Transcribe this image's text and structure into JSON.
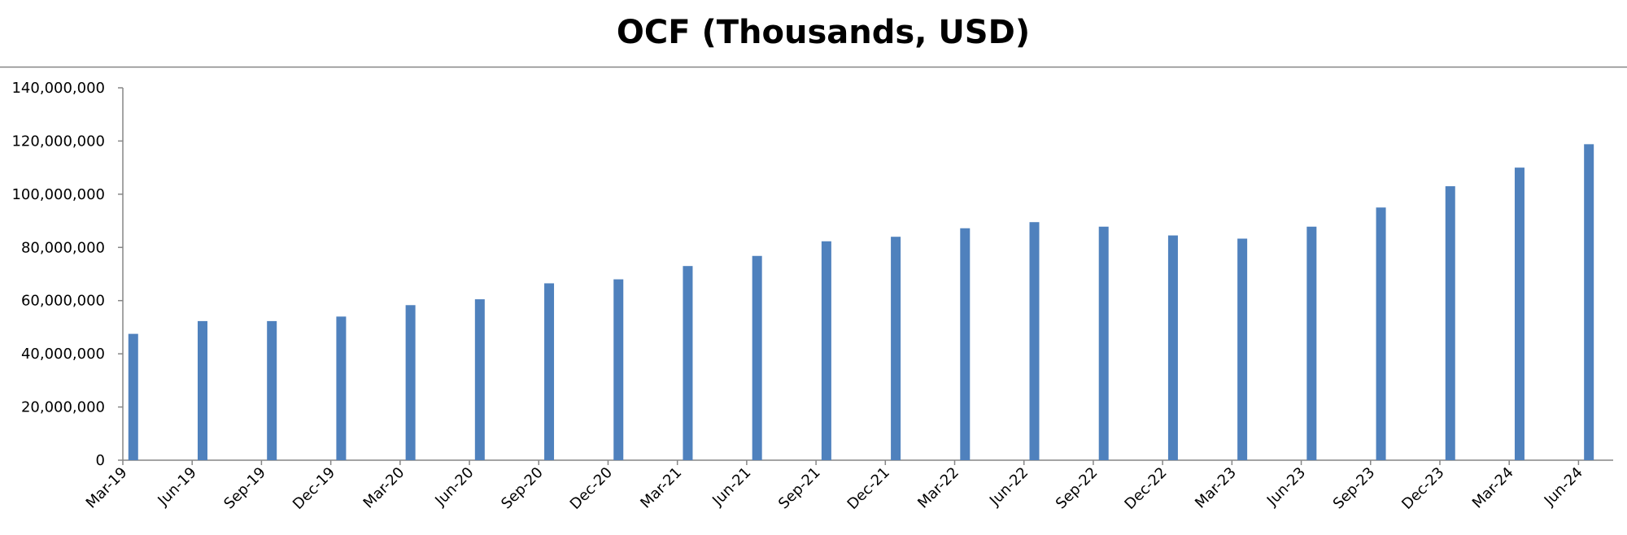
{
  "chart_data": {
    "type": "bar",
    "title": "OCF (Thousands, USD)",
    "xlabel": "",
    "ylabel": "",
    "categories": [
      "Mar-19",
      "Jun-19",
      "Sep-19",
      "Dec-19",
      "Mar-20",
      "Jun-20",
      "Sep-20",
      "Dec-20",
      "Mar-21",
      "Jun-21",
      "Sep-21",
      "Dec-21",
      "Mar-22",
      "Jun-22",
      "Sep-22",
      "Dec-22",
      "Mar-23",
      "Jun-23",
      "Sep-23",
      "Dec-23",
      "Mar-24",
      "Jun-24"
    ],
    "values": [
      47500000,
      52300000,
      52300000,
      54000000,
      58300000,
      60500000,
      66500000,
      68000000,
      73000000,
      76800000,
      82300000,
      84000000,
      87200000,
      89500000,
      87800000,
      84500000,
      83300000,
      87800000,
      95000000,
      103000000,
      110000000,
      118800000
    ],
    "ylim": [
      0,
      140000000
    ],
    "yticks": [
      "0",
      "20,000,000",
      "40,000,000",
      "60,000,000",
      "80,000,000",
      "100,000,000",
      "120,000,000",
      "140,000,000"
    ],
    "ytick_values": [
      0,
      20000000,
      40000000,
      60000000,
      80000000,
      100000000,
      120000000,
      140000000
    ],
    "grid": false,
    "legend": "none",
    "bar_color": "#4F81BD",
    "axis_color": "#868686"
  }
}
